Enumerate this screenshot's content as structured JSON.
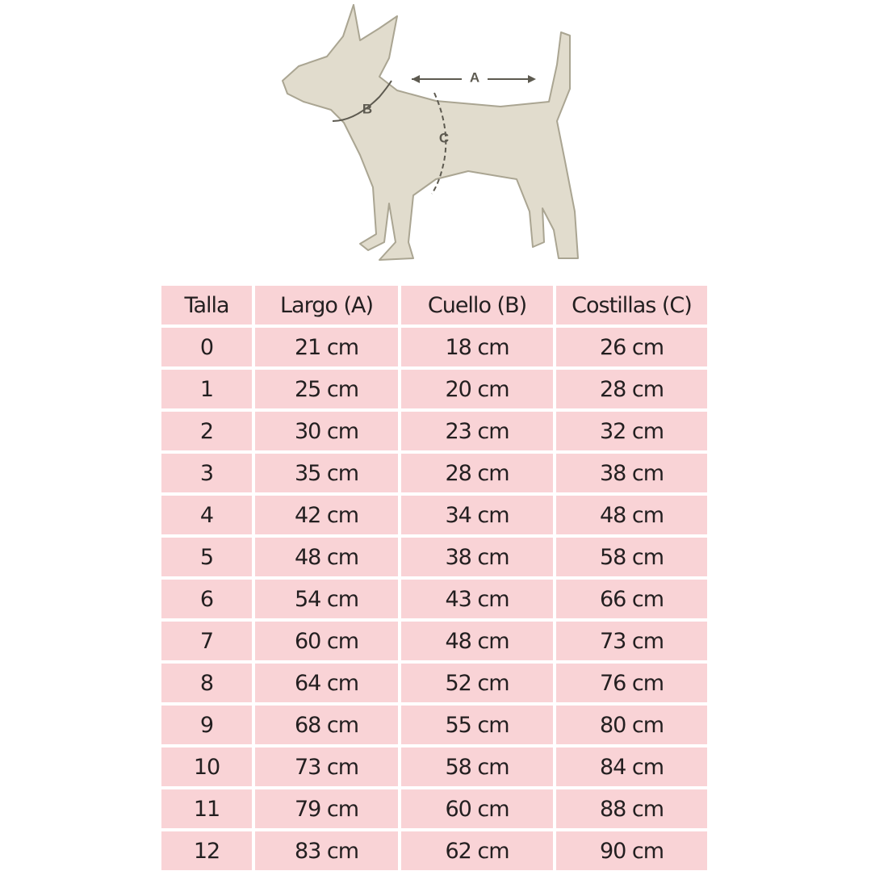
{
  "diagram": {
    "labels": [
      "A",
      "B",
      "C"
    ]
  },
  "table": {
    "header": [
      "Talla",
      "Largo (A)",
      "Cuello (B)",
      "Costillas (C)"
    ],
    "rows": [
      [
        "0",
        "21 cm",
        "18 cm",
        "26 cm"
      ],
      [
        "1",
        "25 cm",
        "20 cm",
        "28 cm"
      ],
      [
        "2",
        "30 cm",
        "23 cm",
        "32 cm"
      ],
      [
        "3",
        "35 cm",
        "28 cm",
        "38 cm"
      ],
      [
        "4",
        "42 cm",
        "34 cm",
        "48 cm"
      ],
      [
        "5",
        "48 cm",
        "38 cm",
        "58 cm"
      ],
      [
        "6",
        "54 cm",
        "43 cm",
        "66 cm"
      ],
      [
        "7",
        "60 cm",
        "48 cm",
        "73 cm"
      ],
      [
        "8",
        "64 cm",
        "52 cm",
        "76 cm"
      ],
      [
        "9",
        "68 cm",
        "55 cm",
        "80 cm"
      ],
      [
        "10",
        "73 cm",
        "58 cm",
        "84 cm"
      ],
      [
        "11",
        "79 cm",
        "60 cm",
        "88 cm"
      ],
      [
        "12",
        "83 cm",
        "62 cm",
        "90 cm"
      ]
    ]
  }
}
